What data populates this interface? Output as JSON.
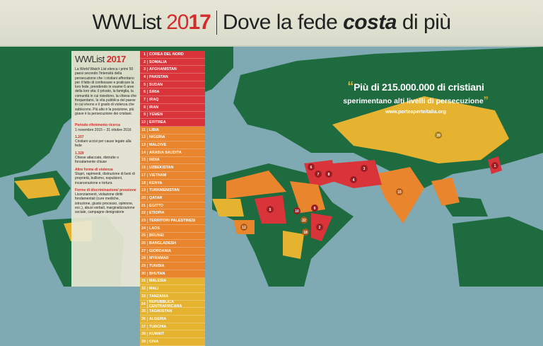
{
  "header": {
    "title_prefix": "WWList ",
    "title_year_light": "20",
    "title_year_bold": "17",
    "subtitle_pre": "Dove la fede ",
    "subtitle_bold": "costa",
    "subtitle_post": " di più"
  },
  "panel": {
    "title_prefix": "WWList ",
    "title_year": "2017",
    "intro": "La World Watch List elenca i primi 50 paesi secondo l'intensità della persecuzione che i cristiani affrontano per il fatto di confessare e praticare la loro fede, prendendo in esame 6 aree della loro vita: il privato, la famiglia, la comunità in cui risiedono, la chiesa che frequentano, la vita pubblica del paese in cui vivono e il grado di violenza che subiscono. Più alto è la posizione, più grave è la persecuzione dei cristiani.",
    "facts": [
      {
        "head": "Periodo riferimento ricerca",
        "text": "1 novembre 2015 – 31 ottobre 2016"
      },
      {
        "head": "1.207",
        "text": "Cristiani uccisi per cause legate alla fede"
      },
      {
        "head": "1.329",
        "text": "Chiese attaccate, distrutte o forzatamente chiuse"
      },
      {
        "head": "Altre forme di violenza",
        "text": "Stupri, rapimenti, distruzione di beni di proprietà, bullismo, espulsioni, incarcerazione e tortura"
      },
      {
        "head": "Forme di discriminazione/ pressione",
        "text": "Licenziamenti, violazione diritti fondamentali (cure mediche, istruzione, giusto processo, opinione, ecc.), abusi verbali, marginalizzazione sociale, campagne denigratorie"
      }
    ]
  },
  "ranking": [
    {
      "n": "1",
      "c": "COREA DEL NORD",
      "level": "red"
    },
    {
      "n": "2",
      "c": "SOMALIA",
      "level": "red"
    },
    {
      "n": "3",
      "c": "AFGHANISTAN",
      "level": "red"
    },
    {
      "n": "4",
      "c": "PAKISTAN",
      "level": "red"
    },
    {
      "n": "5",
      "c": "SUDAN",
      "level": "red"
    },
    {
      "n": "6",
      "c": "SIRIA",
      "level": "red"
    },
    {
      "n": "7",
      "c": "IRAQ",
      "level": "red"
    },
    {
      "n": "8",
      "c": "IRAN",
      "level": "red"
    },
    {
      "n": "9",
      "c": "YEMEN",
      "level": "red"
    },
    {
      "n": "10",
      "c": "ERITREA",
      "level": "red"
    },
    {
      "n": "11",
      "c": "LIBIA",
      "level": "orange"
    },
    {
      "n": "12",
      "c": "NIGERIA",
      "level": "orange"
    },
    {
      "n": "13",
      "c": "MALDIVE",
      "level": "orange"
    },
    {
      "n": "14",
      "c": "ARABIA SAUDITA",
      "level": "orange"
    },
    {
      "n": "15",
      "c": "INDIA",
      "level": "orange"
    },
    {
      "n": "16",
      "c": "UZBEKISTAN",
      "level": "orange"
    },
    {
      "n": "17",
      "c": "VIETNAM",
      "level": "orange"
    },
    {
      "n": "18",
      "c": "KENYA",
      "level": "orange"
    },
    {
      "n": "19",
      "c": "TURKMENISTAN",
      "level": "orange"
    },
    {
      "n": "20",
      "c": "QATAR",
      "level": "orange"
    },
    {
      "n": "21",
      "c": "EGITTO",
      "level": "orange"
    },
    {
      "n": "22",
      "c": "ETIOPIA",
      "level": "orange"
    },
    {
      "n": "23",
      "c": "TERRITORI PALESTINESI",
      "level": "orange"
    },
    {
      "n": "24",
      "c": "LAOS",
      "level": "orange"
    },
    {
      "n": "25",
      "c": "BRUNEI",
      "level": "orange"
    },
    {
      "n": "26",
      "c": "BANGLADESH",
      "level": "orange"
    },
    {
      "n": "27",
      "c": "GIORDANIA",
      "level": "orange"
    },
    {
      "n": "28",
      "c": "MYANMAR",
      "level": "orange"
    },
    {
      "n": "29",
      "c": "TUNISIA",
      "level": "orange"
    },
    {
      "n": "30",
      "c": "BHUTAN",
      "level": "orange"
    },
    {
      "n": "31",
      "c": "MALESIA",
      "level": "yellow"
    },
    {
      "n": "32",
      "c": "MALI",
      "level": "yellow"
    },
    {
      "n": "33",
      "c": "TANZANIA",
      "level": "yellow"
    },
    {
      "n": "34",
      "c": "REPUBBLICA CENTRAFRICANA",
      "level": "yellow"
    },
    {
      "n": "35",
      "c": "TAGIKISTAN",
      "level": "yellow"
    },
    {
      "n": "36",
      "c": "ALGERIA",
      "level": "yellow"
    },
    {
      "n": "37",
      "c": "TURCHIA",
      "level": "yellow"
    },
    {
      "n": "38",
      "c": "KUWAIT",
      "level": "yellow"
    },
    {
      "n": "39",
      "c": "CINA",
      "level": "yellow"
    }
  ],
  "quote": {
    "open": "“",
    "line1": "Più di 215.000.000 di cristiani",
    "line2": "sperimentano alti livelli di persecuzione",
    "close": "”",
    "url": "www.porteaperteitalia.org"
  },
  "map_labels": [
    "1",
    "2",
    "3",
    "4",
    "5",
    "6",
    "7",
    "8",
    "9",
    "10",
    "12",
    "15",
    "18",
    "22",
    "39"
  ],
  "colors": {
    "red": "#d9343a",
    "orange": "#e9852c",
    "yellow": "#e6b331",
    "land": "#1e6b40",
    "ocean": "#7fa9b3",
    "header_bg": "#e3e3d2"
  }
}
